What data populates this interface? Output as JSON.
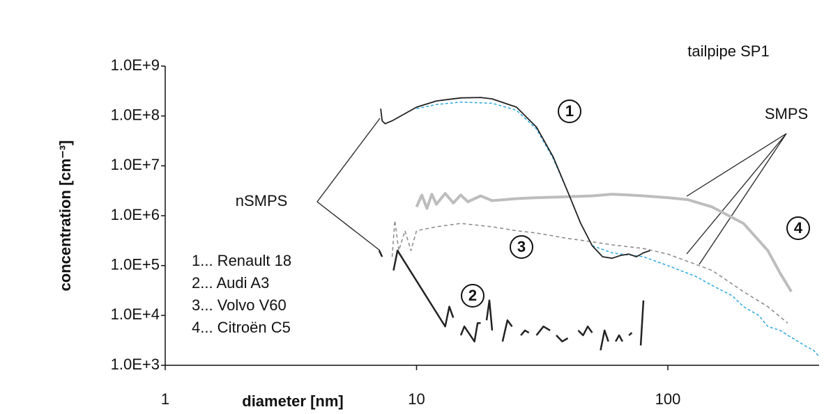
{
  "chart_data": {
    "type": "line",
    "title": "tailpipe SP1",
    "x_label": "diameter [nm]",
    "y_label": "concentration [cm⁻³]",
    "log_x": true,
    "log_y": true,
    "xlim": [
      1,
      400
    ],
    "xticks": [
      1,
      10,
      100
    ],
    "ylim": [
      1000,
      1000000000
    ],
    "yticks": [
      {
        "value": 1000,
        "label": "1.0E+3"
      },
      {
        "value": 10000,
        "label": "1.0E+4"
      },
      {
        "value": 100000,
        "label": "1.0E+5"
      },
      {
        "value": 1000000,
        "label": "1.0E+6"
      },
      {
        "value": 10000000,
        "label": "1.0E+7"
      },
      {
        "value": 100000000,
        "label": "1.0E+8"
      },
      {
        "value": 1000000000,
        "label": "1.0E+9"
      }
    ],
    "annotations": [
      "nSMPS",
      "SMPS",
      "1",
      "2",
      "3",
      "4"
    ],
    "legend": [
      "1... Renault 18",
      "2... Audi A3",
      "3... Volvo V60",
      "4... Citroën C5"
    ],
    "series": [
      {
        "color": "#bdbdbd",
        "width": 4,
        "dash": "none",
        "x": [
          10,
          10.5,
          11,
          11.5,
          12,
          13,
          14,
          15,
          16,
          18,
          20,
          25,
          30,
          40,
          50,
          60,
          70,
          80,
          100,
          120,
          150,
          200,
          250,
          280,
          310
        ],
        "values": [
          1500000,
          2600000,
          1400000,
          2700000,
          1700000,
          2800000,
          1800000,
          2600000,
          1900000,
          2500000,
          2000000,
          2200000,
          2300000,
          2400000,
          2500000,
          2700000,
          2600000,
          2500000,
          2300000,
          2100000,
          1500000,
          700000,
          200000,
          70000,
          30000
        ]
      },
      {
        "color": "#888888",
        "width": 1.5,
        "dash": "5 4",
        "x": [
          8,
          8.2,
          8.5,
          9,
          9.5,
          10,
          12,
          15,
          20,
          25,
          30,
          40,
          50,
          60,
          80,
          100,
          150,
          200,
          250,
          300
        ],
        "values": [
          150000,
          800000,
          200000,
          500000,
          200000,
          500000,
          600000,
          700000,
          600000,
          500000,
          450000,
          350000,
          300000,
          260000,
          220000,
          170000,
          80000,
          30000,
          15000,
          7000
        ]
      },
      {
        "color": "#29a8e0",
        "width": 1.5,
        "dash": "4 3",
        "x": [
          10,
          12,
          15,
          20,
          25,
          30,
          35,
          40,
          45,
          50,
          60,
          80,
          100,
          130,
          150,
          180,
          200,
          230,
          250,
          280,
          300,
          330,
          350,
          380,
          400
        ],
        "values": [
          140000000,
          170000000,
          190000000,
          180000000,
          130000000,
          55000000,
          14000000,
          3000000,
          700000,
          250000,
          180000,
          150000,
          100000,
          60000,
          40000,
          25000,
          15000,
          10000,
          6000,
          5000,
          4000,
          3000,
          2500,
          2000,
          1500
        ]
      },
      {
        "color": "#222222",
        "width": 1.8,
        "dash": "none",
        "x": [
          7.2,
          7.3,
          7.5,
          8,
          10,
          12,
          15,
          18,
          20,
          25,
          30,
          35,
          40,
          45,
          50,
          55,
          60,
          65,
          70,
          75,
          80,
          85
        ],
        "values": [
          140000000,
          80000000,
          70000000,
          80000000,
          150000000,
          200000000,
          230000000,
          235000000,
          220000000,
          150000000,
          60000000,
          15000000,
          3000000,
          700000,
          250000,
          150000,
          140000,
          160000,
          170000,
          150000,
          180000,
          200000
        ]
      },
      {
        "color": "#222222",
        "width": 2.5,
        "dash": "none",
        "x": [
          7.1,
          7.3,
          7.4,
          8.1,
          8.4,
          13,
          13.5,
          14,
          14.5,
          15,
          15.5,
          17,
          17.5,
          18,
          18.5,
          19,
          19.5,
          20,
          21,
          22,
          23,
          24,
          25,
          26,
          27,
          28,
          29,
          30,
          32,
          34,
          35,
          36,
          38,
          40,
          42,
          44,
          46,
          48,
          50,
          52,
          54,
          56,
          58,
          60,
          62,
          64,
          66,
          68,
          70,
          72,
          75,
          78,
          80
        ],
        "values": [
          200000,
          150000,
          null,
          80000,
          200000,
          6000,
          15000,
          9000,
          null,
          4000,
          6000,
          3000,
          7000,
          7000,
          null,
          8000,
          20000,
          5000,
          null,
          3000,
          8000,
          6000,
          null,
          4000,
          5000,
          4500,
          null,
          4000,
          6000,
          5000,
          null,
          4000,
          3000,
          3500,
          null,
          5000,
          4000,
          6000,
          4500,
          null,
          2000,
          5000,
          3000,
          null,
          3000,
          4000,
          3000,
          null,
          4000,
          4500,
          null,
          2500,
          20000
        ]
      }
    ]
  }
}
